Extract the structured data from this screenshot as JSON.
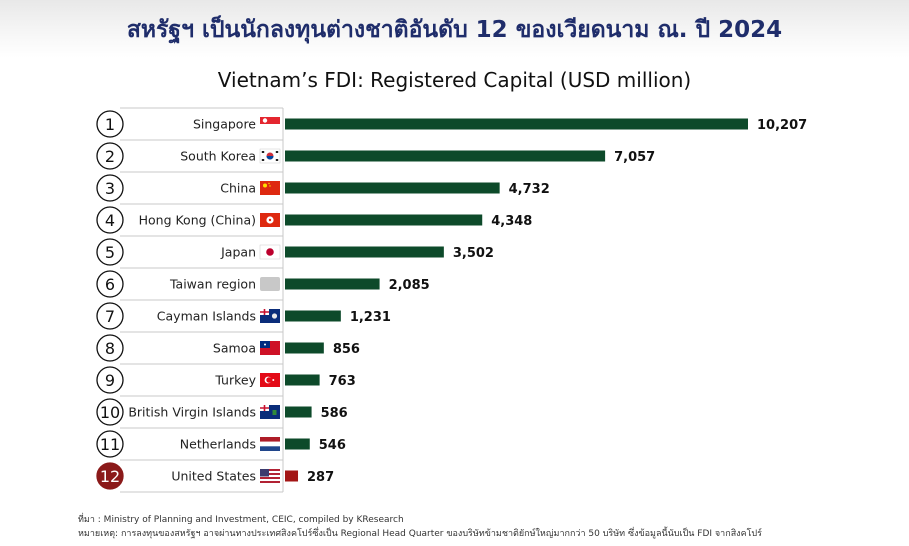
{
  "header": {
    "title": "สหรัฐฯ เป็นนักลงทุนต่างชาติอันดับ 12 ของเวียดนาม ณ. ปี 2024"
  },
  "chart_data": {
    "type": "bar",
    "orientation": "horizontal",
    "title": "Vietnam’s FDI: Registered Capital (USD million)",
    "categories": [
      "Singapore",
      "South Korea",
      "China",
      "Hong Kong (China)",
      "Japan",
      "Taiwan region",
      "Cayman Islands",
      "Samoa",
      "Turkey",
      "British Virgin Islands",
      "Netherlands",
      "United States"
    ],
    "ranks": [
      "1",
      "2",
      "3",
      "4",
      "5",
      "6",
      "7",
      "8",
      "9",
      "10",
      "11",
      "12"
    ],
    "values": [
      10207,
      7057,
      4732,
      4348,
      3502,
      2085,
      1231,
      856,
      763,
      586,
      546,
      287
    ],
    "value_labels": [
      "10,207",
      "7,057",
      "4,732",
      "4,348",
      "3,502",
      "2,085",
      "1,231",
      "856",
      "763",
      "586",
      "546",
      "287"
    ],
    "highlight_index": 11,
    "xlim": [
      0,
      10207
    ],
    "grid": false,
    "legend": "none",
    "colors": {
      "bar": "#0d4a2a",
      "highlight_bar": "#a31515",
      "rank_circle_border": "#111111",
      "highlight_circle": "#8b1a1a"
    },
    "flag_icons": [
      "singapore-flag-icon",
      "south-korea-flag-icon",
      "china-flag-icon",
      "hong-kong-flag-icon",
      "japan-flag-icon",
      "blank-flag-icon",
      "cayman-islands-flag-icon",
      "samoa-flag-icon",
      "turkey-flag-icon",
      "british-virgin-islands-flag-icon",
      "netherlands-flag-icon",
      "united-states-flag-icon"
    ]
  },
  "footer": {
    "source": "ที่มา : Ministry of Planning and Investment, CEIC, compiled by KResearch",
    "note": "หมายเหตุ: การลงทุนของสหรัฐฯ อาจผ่านทางประเทศสิงคโปร์ซึ่งเป็น Regional Head Quarter ของบริษัทข้ามชาติยักษ์ใหญ่มากกว่า 50 บริษัท ซึ่งข้อมูลนี้นับเป็น FDI จากสิงคโปร์"
  }
}
